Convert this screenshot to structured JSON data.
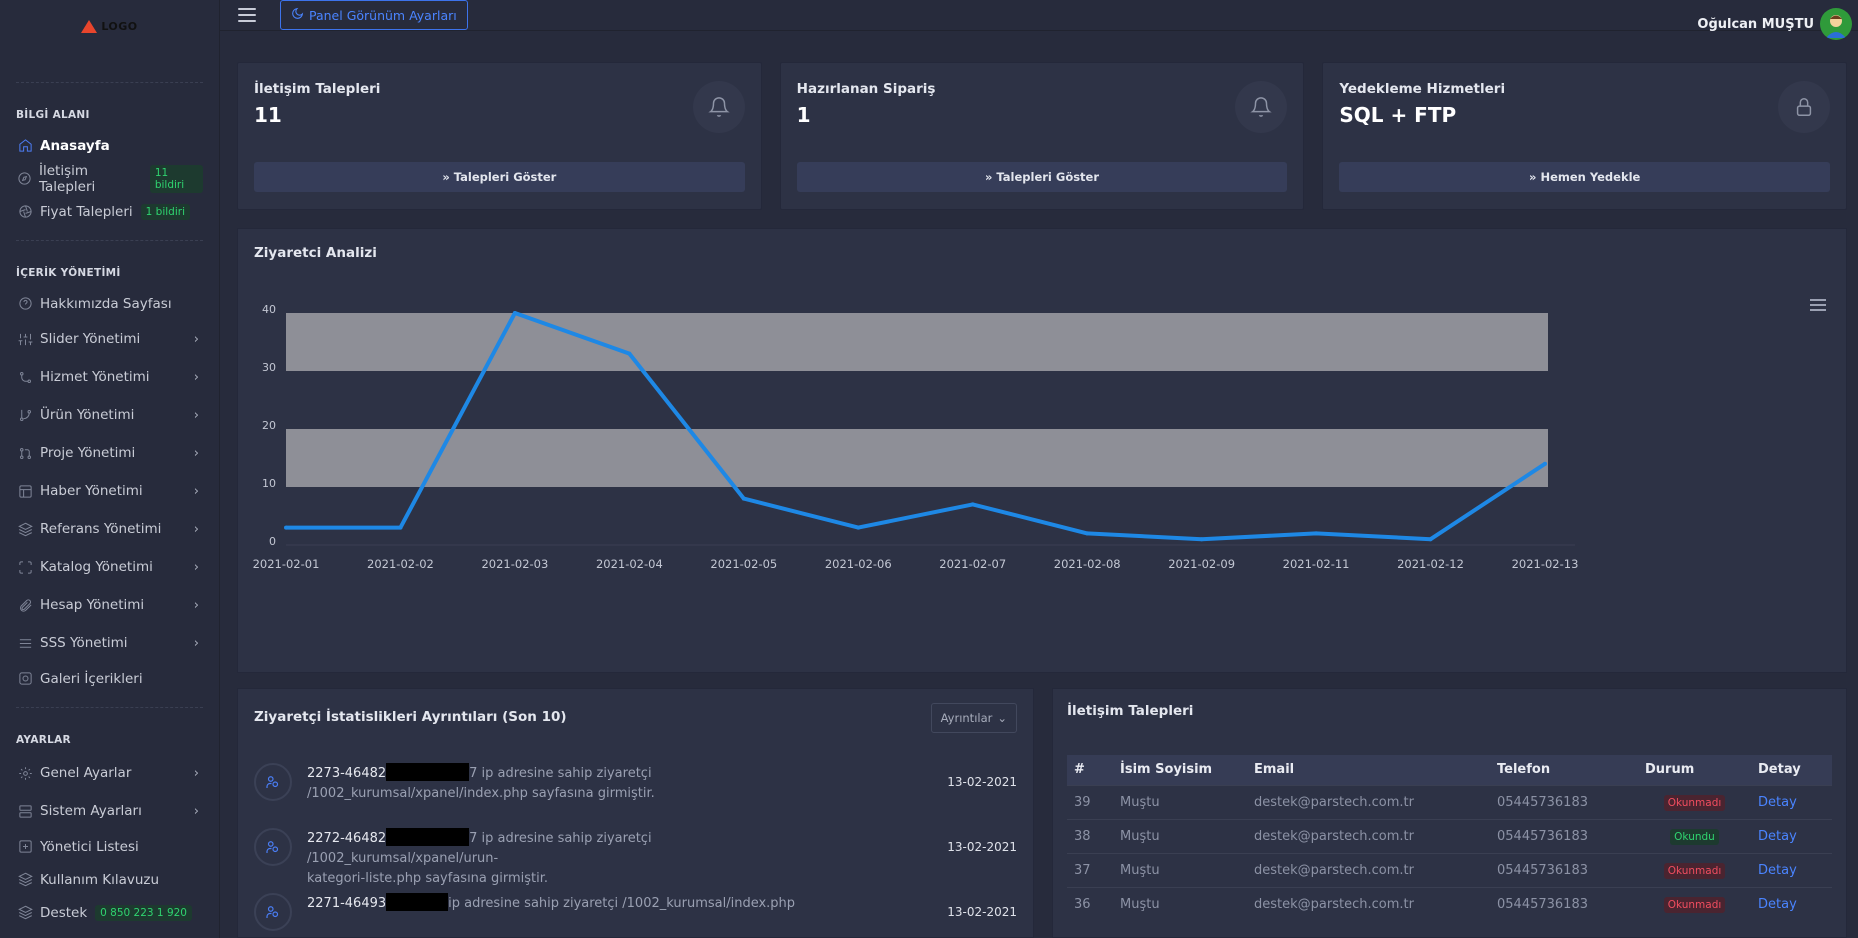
{
  "sidebar": {
    "logo_text": "LOGO",
    "sections": {
      "info_title": "BİLGİ ALANI",
      "content_title": "İÇERİK YÖNETİMİ",
      "settings_title": "AYARLAR"
    },
    "info_items": [
      {
        "label": "Anasayfa",
        "icon": "home-icon"
      },
      {
        "label": "İletişim Talepleri",
        "badge": "11 bildiri",
        "icon": "compass-icon"
      },
      {
        "label": "Fiyat Talepleri",
        "badge": "1 bildiri",
        "icon": "aperture-icon"
      }
    ],
    "content_items": [
      {
        "label": "Hakkımızda Sayfası",
        "icon": "help-circle-icon"
      },
      {
        "label": "Slider Yönetimi",
        "icon": "sliders-icon"
      },
      {
        "label": "Hizmet Yönetimi",
        "icon": "git-icon"
      },
      {
        "label": "Ürün Yönetimi",
        "icon": "git-branch-icon"
      },
      {
        "label": "Proje Yönetimi",
        "icon": "git-pull-icon"
      },
      {
        "label": "Haber Yönetimi",
        "icon": "layout-icon"
      },
      {
        "label": "Referans Yönetimi",
        "icon": "layers-icon"
      },
      {
        "label": "Katalog Yönetimi",
        "icon": "maximize-icon"
      },
      {
        "label": "Hesap Yönetimi",
        "icon": "paperclip-icon"
      },
      {
        "label": "SSS Yönetimi",
        "icon": "list-icon"
      },
      {
        "label": "Galeri İçerikleri",
        "icon": "disc-icon"
      }
    ],
    "settings_items": [
      {
        "label": "Genel Ayarlar",
        "icon": "settings-icon"
      },
      {
        "label": "Sistem Ayarları",
        "icon": "server-icon"
      },
      {
        "label": "Yönetici Listesi",
        "icon": "plus-square-icon"
      },
      {
        "label": "Kullanım Kılavuzu",
        "icon": "layers-icon"
      },
      {
        "label": "Destek",
        "badge": "0 850 223 1 920",
        "icon": "layers-icon"
      }
    ]
  },
  "topbar": {
    "panel_button": "Panel Görünüm Ayarları",
    "user_name": "Oğulcan MUŞTU"
  },
  "cards": [
    {
      "title": "İletişim Talepleri",
      "value": "11",
      "button": "Talepleri Göster",
      "icon": "bell-icon"
    },
    {
      "title": "Hazırlanan Sipariş",
      "value": "1",
      "button": "Talepleri Göster",
      "icon": "bell-icon"
    },
    {
      "title": "Yedekleme Hizmetleri",
      "value": "SQL + FTP",
      "button": "Hemen Yedekle",
      "icon": "lock-icon"
    }
  ],
  "chart_data": {
    "type": "line",
    "title": "Ziyaretci Analizi",
    "categories": [
      "2021-02-01",
      "2021-02-02",
      "2021-02-03",
      "2021-02-04",
      "2021-02-05",
      "2021-02-06",
      "2021-02-07",
      "2021-02-08",
      "2021-02-09",
      "2021-02-11",
      "2021-02-12",
      "2021-02-13"
    ],
    "series": [
      {
        "values": [
          3,
          3,
          40,
          33,
          8,
          3,
          7,
          2,
          1,
          2,
          1,
          14
        ]
      }
    ],
    "ylim": [
      0,
      40
    ],
    "yticks": [
      0,
      10,
      20,
      30,
      40
    ],
    "bands": [
      [
        10,
        20
      ],
      [
        30,
        40
      ]
    ],
    "line_color": "#1e88e5",
    "band_color": "#8e8f97"
  },
  "visitor_panel": {
    "title": "Ziyaretçi İstatislikleri Ayrıntıları (Son 10)",
    "dropdown": "Ayrıntılar",
    "items": [
      {
        "id": "2273-46482",
        "text_a": "7 ip adresine sahip ziyaretçi",
        "text_b": "/1002_kurumsal/xpanel/index.php sayfasına girmiştir.",
        "date": "13-02-2021"
      },
      {
        "id": "2272-46482",
        "text_a": "7 ip adresine sahip ziyaretçi /1002_kurumsal/xpanel/urun-",
        "text_b": "kategori-liste.php sayfasına girmiştir.",
        "date": "13-02-2021"
      },
      {
        "id": "2271-46493",
        "text_a": "ip adresine sahip ziyaretçi /1002_kurumsal/index.php",
        "text_b": "",
        "date": "13-02-2021"
      }
    ]
  },
  "requests_panel": {
    "title": "İletişim Talepleri",
    "columns": [
      "#",
      "İsim Soyisim",
      "Email",
      "Telefon",
      "Durum",
      "Detay"
    ],
    "rows": [
      {
        "num": "39",
        "name": "Muştu",
        "email": "destek@parstech.com.tr",
        "phone": "05445736183",
        "status": "Okunmadı",
        "status_kind": "unread",
        "detail": "Detay"
      },
      {
        "num": "38",
        "name": "Muştu",
        "email": "destek@parstech.com.tr",
        "phone": "05445736183",
        "status": "Okundu",
        "status_kind": "read",
        "detail": "Detay"
      },
      {
        "num": "37",
        "name": "Muştu",
        "email": "destek@parstech.com.tr",
        "phone": "05445736183",
        "status": "Okunmadı",
        "status_kind": "unread",
        "detail": "Detay"
      },
      {
        "num": "36",
        "name": "Muştu",
        "email": "destek@parstech.com.tr",
        "phone": "05445736183",
        "status": "Okunmadı",
        "status_kind": "unread",
        "detail": "Detay"
      }
    ]
  }
}
